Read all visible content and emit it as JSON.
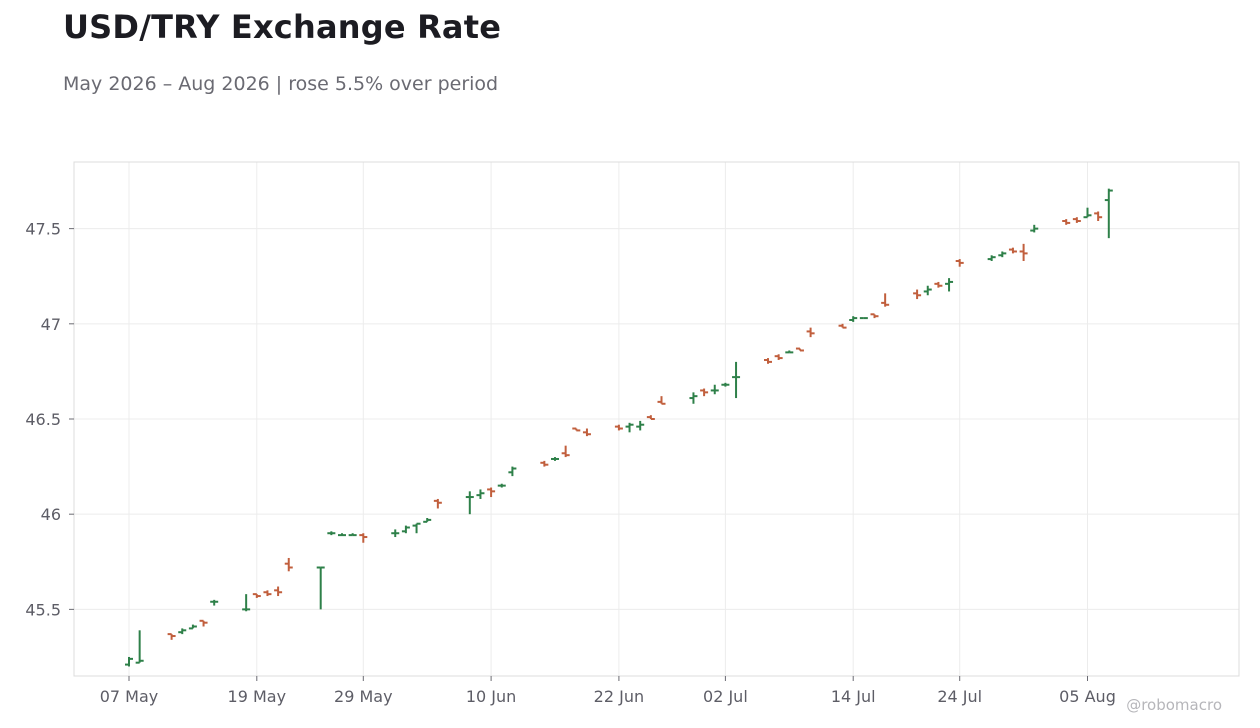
{
  "title": "USD/TRY Exchange Rate",
  "subtitle": "May 2026 – Aug 2026 | rose 5.5% over period",
  "watermark": "@robomacro",
  "colors": {
    "up": "#2e8049",
    "down": "#c15f3d",
    "grid": "#ececec",
    "axis": "#dcdcdc"
  },
  "chart_data": {
    "type": "ohlc",
    "x_start_label": "07 May",
    "x_ticks": [
      "07 May",
      "19 May",
      "29 May",
      "10 Jun",
      "22 Jun",
      "02 Jul",
      "14 Jul",
      "24 Jul",
      "05 Aug"
    ],
    "y_ticks": [
      "45.5",
      "46",
      "46.5",
      "47",
      "47.5"
    ],
    "ylim": [
      45.15,
      47.85
    ],
    "grid": true,
    "series": [
      {
        "date": "07 May",
        "open": 45.21,
        "high": 45.25,
        "low": 45.2,
        "close": 45.24
      },
      {
        "date": "08 May",
        "open": 45.22,
        "high": 45.39,
        "low": 45.22,
        "close": 45.23
      },
      {
        "date": "11 May",
        "open": 45.37,
        "high": 45.37,
        "low": 45.34,
        "close": 45.36
      },
      {
        "date": "12 May",
        "open": 45.38,
        "high": 45.4,
        "low": 45.37,
        "close": 45.39
      },
      {
        "date": "13 May",
        "open": 45.4,
        "high": 45.42,
        "low": 45.4,
        "close": 45.41
      },
      {
        "date": "14 May",
        "open": 45.44,
        "high": 45.44,
        "low": 45.41,
        "close": 45.43
      },
      {
        "date": "15 May",
        "open": 45.54,
        "high": 45.55,
        "low": 45.52,
        "close": 45.54
      },
      {
        "date": "18 May",
        "open": 45.5,
        "high": 45.58,
        "low": 45.49,
        "close": 45.5
      },
      {
        "date": "19 May",
        "open": 45.58,
        "high": 45.58,
        "low": 45.56,
        "close": 45.57
      },
      {
        "date": "20 May",
        "open": 45.59,
        "high": 45.6,
        "low": 45.57,
        "close": 45.58
      },
      {
        "date": "21 May",
        "open": 45.6,
        "high": 45.62,
        "low": 45.57,
        "close": 45.59
      },
      {
        "date": "22 May",
        "open": 45.74,
        "high": 45.77,
        "low": 45.7,
        "close": 45.72
      },
      {
        "date": "25 May",
        "open": 45.72,
        "high": 45.72,
        "low": 45.5,
        "close": 45.72
      },
      {
        "date": "26 May",
        "open": 45.9,
        "high": 45.91,
        "low": 45.89,
        "close": 45.9
      },
      {
        "date": "27 May",
        "open": 45.89,
        "high": 45.9,
        "low": 45.89,
        "close": 45.89
      },
      {
        "date": "28 May",
        "open": 45.89,
        "high": 45.9,
        "low": 45.89,
        "close": 45.89
      },
      {
        "date": "29 May",
        "open": 45.89,
        "high": 45.9,
        "low": 45.85,
        "close": 45.88
      },
      {
        "date": "01 Jun",
        "open": 45.9,
        "high": 45.92,
        "low": 45.88,
        "close": 45.9
      },
      {
        "date": "02 Jun",
        "open": 45.91,
        "high": 45.94,
        "low": 45.9,
        "close": 45.93
      },
      {
        "date": "03 Jun",
        "open": 45.94,
        "high": 45.95,
        "low": 45.9,
        "close": 45.95
      },
      {
        "date": "04 Jun",
        "open": 45.96,
        "high": 45.98,
        "low": 45.96,
        "close": 45.97
      },
      {
        "date": "05 Jun",
        "open": 46.07,
        "high": 46.08,
        "low": 46.03,
        "close": 46.06
      },
      {
        "date": "08 Jun",
        "open": 46.09,
        "high": 46.12,
        "low": 46.0,
        "close": 46.09
      },
      {
        "date": "09 Jun",
        "open": 46.1,
        "high": 46.13,
        "low": 46.08,
        "close": 46.11
      },
      {
        "date": "10 Jun",
        "open": 46.13,
        "high": 46.14,
        "low": 46.09,
        "close": 46.12
      },
      {
        "date": "11 Jun",
        "open": 46.15,
        "high": 46.16,
        "low": 46.14,
        "close": 46.15
      },
      {
        "date": "12 Jun",
        "open": 46.22,
        "high": 46.25,
        "low": 46.2,
        "close": 46.24
      },
      {
        "date": "15 Jun",
        "open": 46.27,
        "high": 46.28,
        "low": 46.25,
        "close": 46.26
      },
      {
        "date": "16 Jun",
        "open": 46.29,
        "high": 46.3,
        "low": 46.28,
        "close": 46.29
      },
      {
        "date": "17 Jun",
        "open": 46.32,
        "high": 46.36,
        "low": 46.3,
        "close": 46.31
      },
      {
        "date": "18 Jun",
        "open": 46.45,
        "high": 46.45,
        "low": 46.44,
        "close": 46.44
      },
      {
        "date": "19 Jun",
        "open": 46.43,
        "high": 46.45,
        "low": 46.41,
        "close": 46.42
      },
      {
        "date": "22 Jun",
        "open": 46.46,
        "high": 46.47,
        "low": 46.44,
        "close": 46.45
      },
      {
        "date": "23 Jun",
        "open": 46.46,
        "high": 46.48,
        "low": 46.43,
        "close": 46.47
      },
      {
        "date": "24 Jun",
        "open": 46.46,
        "high": 46.49,
        "low": 46.44,
        "close": 46.47
      },
      {
        "date": "25 Jun",
        "open": 46.51,
        "high": 46.52,
        "low": 46.5,
        "close": 46.5
      },
      {
        "date": "26 Jun",
        "open": 46.59,
        "high": 46.62,
        "low": 46.58,
        "close": 46.58
      },
      {
        "date": "29 Jun",
        "open": 46.61,
        "high": 46.64,
        "low": 46.58,
        "close": 46.62
      },
      {
        "date": "30 Jun",
        "open": 46.65,
        "high": 46.66,
        "low": 46.62,
        "close": 46.64
      },
      {
        "date": "01 Jul",
        "open": 46.65,
        "high": 46.68,
        "low": 46.63,
        "close": 46.65
      },
      {
        "date": "02 Jul",
        "open": 46.68,
        "high": 46.69,
        "low": 46.67,
        "close": 46.68
      },
      {
        "date": "03 Jul",
        "open": 46.72,
        "high": 46.8,
        "low": 46.61,
        "close": 46.72
      },
      {
        "date": "06 Jul",
        "open": 46.81,
        "high": 46.82,
        "low": 46.79,
        "close": 46.8
      },
      {
        "date": "07 Jul",
        "open": 46.83,
        "high": 46.84,
        "low": 46.81,
        "close": 46.82
      },
      {
        "date": "08 Jul",
        "open": 46.85,
        "high": 46.86,
        "low": 46.85,
        "close": 46.85
      },
      {
        "date": "09 Jul",
        "open": 46.87,
        "high": 46.87,
        "low": 46.86,
        "close": 46.86
      },
      {
        "date": "10 Jul",
        "open": 46.96,
        "high": 46.98,
        "low": 46.93,
        "close": 46.95
      },
      {
        "date": "13 Jul",
        "open": 46.99,
        "high": 47.0,
        "low": 46.98,
        "close": 46.98
      },
      {
        "date": "14 Jul",
        "open": 47.02,
        "high": 47.04,
        "low": 47.01,
        "close": 47.03
      },
      {
        "date": "15 Jul",
        "open": 47.03,
        "high": 47.03,
        "low": 47.03,
        "close": 47.03
      },
      {
        "date": "16 Jul",
        "open": 47.05,
        "high": 47.05,
        "low": 47.03,
        "close": 47.04
      },
      {
        "date": "17 Jul",
        "open": 47.11,
        "high": 47.16,
        "low": 47.09,
        "close": 47.1
      },
      {
        "date": "20 Jul",
        "open": 47.16,
        "high": 47.18,
        "low": 47.13,
        "close": 47.15
      },
      {
        "date": "21 Jul",
        "open": 47.17,
        "high": 47.2,
        "low": 47.15,
        "close": 47.18
      },
      {
        "date": "22 Jul",
        "open": 47.21,
        "high": 47.22,
        "low": 47.19,
        "close": 47.2
      },
      {
        "date": "23 Jul",
        "open": 47.21,
        "high": 47.24,
        "low": 47.17,
        "close": 47.22
      },
      {
        "date": "24 Jul",
        "open": 47.33,
        "high": 47.34,
        "low": 47.3,
        "close": 47.32
      },
      {
        "date": "27 Jul",
        "open": 47.34,
        "high": 47.36,
        "low": 47.33,
        "close": 47.35
      },
      {
        "date": "28 Jul",
        "open": 47.36,
        "high": 47.38,
        "low": 47.35,
        "close": 47.37
      },
      {
        "date": "29 Jul",
        "open": 47.39,
        "high": 47.4,
        "low": 47.37,
        "close": 47.38
      },
      {
        "date": "30 Jul",
        "open": 47.38,
        "high": 47.42,
        "low": 47.33,
        "close": 47.37
      },
      {
        "date": "31 Jul",
        "open": 47.49,
        "high": 47.52,
        "low": 47.48,
        "close": 47.5
      },
      {
        "date": "03 Aug",
        "open": 47.54,
        "high": 47.55,
        "low": 47.52,
        "close": 47.53
      },
      {
        "date": "04 Aug",
        "open": 47.55,
        "high": 47.56,
        "low": 47.53,
        "close": 47.54
      },
      {
        "date": "05 Aug",
        "open": 47.56,
        "high": 47.61,
        "low": 47.56,
        "close": 47.57
      },
      {
        "date": "06 Aug",
        "open": 47.58,
        "high": 47.59,
        "low": 47.54,
        "close": 47.56
      },
      {
        "date": "07 Aug",
        "open": 47.65,
        "high": 47.71,
        "low": 47.45,
        "close": 47.7
      }
    ]
  }
}
